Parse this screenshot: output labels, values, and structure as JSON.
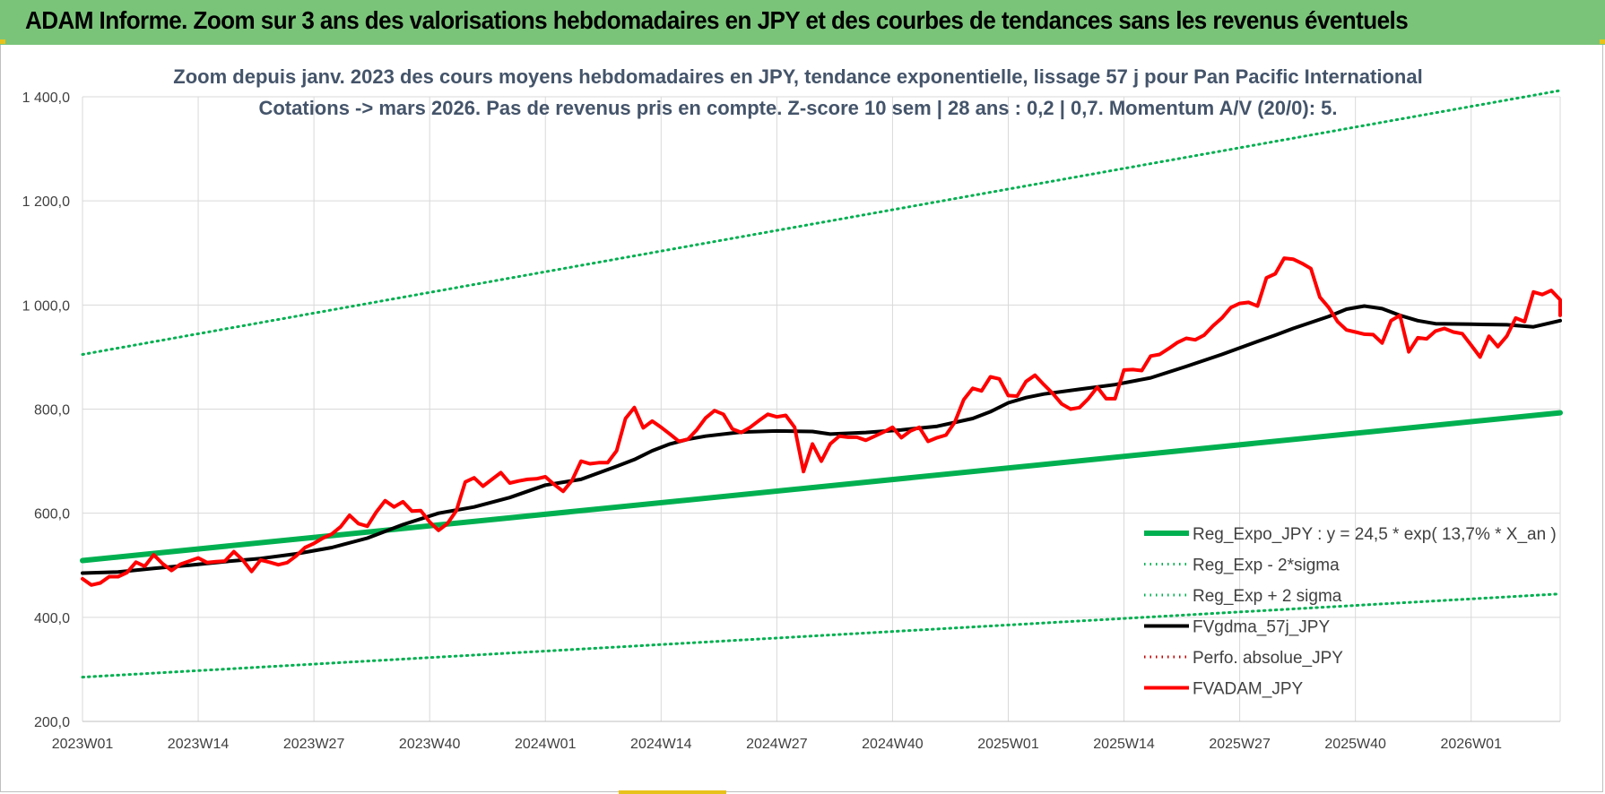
{
  "header": {
    "title": "ADAM Informe. Zoom sur 3 ans des valorisations hebdomadaires en JPY et des courbes de tendances sans les revenus éventuels"
  },
  "colors": {
    "banner": "#7ac47a",
    "regression": "#00b050",
    "price": "#ff0000",
    "smoothing": "#000000",
    "grid": "#d9d9d9"
  },
  "chart_data": {
    "type": "line",
    "subtitle_line1": "Zoom depuis janv. 2023 des cours moyens hebdomadaires en JPY, tendance exponentielle, lissage 57 j pour Pan Pacific International",
    "subtitle_line2": "Cotations -> mars 2026. Pas de revenus pris en compte. Z-score 10 sem | 28 ans : 0,2 | 0,7. Momentum A/V (20/0): 5.",
    "x_range_weeks": [
      0,
      166
    ],
    "x_ticks": [
      {
        "label": "2023W01",
        "week": 0
      },
      {
        "label": "2023W14",
        "week": 13
      },
      {
        "label": "2023W27",
        "week": 26
      },
      {
        "label": "2023W40",
        "week": 39
      },
      {
        "label": "2024W01",
        "week": 52
      },
      {
        "label": "2024W14",
        "week": 65
      },
      {
        "label": "2024W27",
        "week": 78
      },
      {
        "label": "2024W40",
        "week": 91
      },
      {
        "label": "2025W01",
        "week": 104
      },
      {
        "label": "2025W14",
        "week": 117
      },
      {
        "label": "2025W27",
        "week": 130
      },
      {
        "label": "2025W40",
        "week": 143
      },
      {
        "label": "2026W01",
        "week": 156
      }
    ],
    "y_ticks": [
      "200,0",
      "400,0",
      "600,0",
      "800,0",
      "1 000,0",
      "1 200,0",
      "1 400,0"
    ],
    "y_tick_values": [
      200,
      400,
      600,
      800,
      1000,
      1200,
      1400
    ],
    "ylim": [
      200,
      1400
    ],
    "grid": true,
    "legend_position": "bottom-right",
    "series": [
      {
        "name": "Reg_Expo_JPY : y = 24,5 * exp( 13,7% *  X_an )",
        "style": "solid-thick",
        "color": "#00b050",
        "points": [
          [
            0,
            509
          ],
          [
            166,
            793
          ]
        ]
      },
      {
        "name": "Reg_Exp - 2*sigma",
        "style": "dotted",
        "color": "#00b050",
        "points": [
          [
            0,
            285
          ],
          [
            166,
            445
          ]
        ]
      },
      {
        "name": "Reg_Exp + 2 sigma",
        "style": "dotted",
        "color": "#00b050",
        "points": [
          [
            0,
            905
          ],
          [
            166,
            1412
          ]
        ]
      },
      {
        "name": "FVgdma_57j_JPY",
        "style": "solid",
        "color": "#000000",
        "points": [
          [
            0,
            485
          ],
          [
            4,
            487
          ],
          [
            8,
            494
          ],
          [
            12,
            500
          ],
          [
            16,
            507
          ],
          [
            20,
            513
          ],
          [
            24,
            522
          ],
          [
            28,
            534
          ],
          [
            32,
            552
          ],
          [
            36,
            578
          ],
          [
            40,
            600
          ],
          [
            44,
            612
          ],
          [
            48,
            630
          ],
          [
            52,
            654
          ],
          [
            56,
            665
          ],
          [
            60,
            690
          ],
          [
            62,
            703
          ],
          [
            64,
            720
          ],
          [
            66,
            733
          ],
          [
            68,
            742
          ],
          [
            70,
            748
          ],
          [
            74,
            756
          ],
          [
            78,
            758
          ],
          [
            82,
            757
          ],
          [
            84,
            752
          ],
          [
            88,
            755
          ],
          [
            92,
            760
          ],
          [
            96,
            767
          ],
          [
            100,
            782
          ],
          [
            102,
            795
          ],
          [
            104,
            812
          ],
          [
            106,
            822
          ],
          [
            108,
            829
          ],
          [
            112,
            838
          ],
          [
            116,
            847
          ],
          [
            120,
            860
          ],
          [
            124,
            882
          ],
          [
            128,
            905
          ],
          [
            132,
            930
          ],
          [
            134,
            942
          ],
          [
            136,
            955
          ],
          [
            140,
            978
          ],
          [
            142,
            992
          ],
          [
            144,
            998
          ],
          [
            146,
            993
          ],
          [
            148,
            980
          ],
          [
            150,
            970
          ],
          [
            152,
            964
          ],
          [
            156,
            963
          ],
          [
            160,
            962
          ],
          [
            163,
            958
          ],
          [
            166,
            970
          ],
          [
            168,
            980
          ],
          [
            172,
            982
          ]
        ]
      },
      {
        "name": "Perfo. absolue_JPY",
        "style": "dotted",
        "color": "#c00000",
        "points": []
      },
      {
        "name": "FVADAM_JPY",
        "style": "solid-thick",
        "color": "#ff0000",
        "points": [
          [
            0,
            474
          ],
          [
            1,
            462
          ],
          [
            2,
            466
          ],
          [
            3,
            478
          ],
          [
            4,
            478
          ],
          [
            5,
            486
          ],
          [
            6,
            506
          ],
          [
            7,
            498
          ],
          [
            8,
            520
          ],
          [
            9,
            503
          ],
          [
            10,
            490
          ],
          [
            11,
            502
          ],
          [
            12,
            508
          ],
          [
            13,
            514
          ],
          [
            14,
            505
          ],
          [
            15,
            507
          ],
          [
            16,
            508
          ],
          [
            17,
            526
          ],
          [
            18,
            510
          ],
          [
            19,
            488
          ],
          [
            20,
            510
          ],
          [
            21,
            506
          ],
          [
            22,
            501
          ],
          [
            23,
            505
          ],
          [
            24,
            518
          ],
          [
            25,
            534
          ],
          [
            26,
            542
          ],
          [
            27,
            552
          ],
          [
            28,
            560
          ],
          [
            29,
            574
          ],
          [
            30,
            596
          ],
          [
            31,
            580
          ],
          [
            32,
            575
          ],
          [
            33,
            602
          ],
          [
            34,
            624
          ],
          [
            35,
            612
          ],
          [
            36,
            622
          ],
          [
            37,
            604
          ],
          [
            38,
            605
          ],
          [
            39,
            583
          ],
          [
            40,
            567
          ],
          [
            41,
            580
          ],
          [
            42,
            605
          ],
          [
            43,
            660
          ],
          [
            44,
            668
          ],
          [
            45,
            652
          ],
          [
            46,
            665
          ],
          [
            47,
            678
          ],
          [
            48,
            658
          ],
          [
            49,
            662
          ],
          [
            50,
            665
          ],
          [
            51,
            666
          ],
          [
            52,
            670
          ],
          [
            53,
            655
          ],
          [
            54,
            642
          ],
          [
            55,
            663
          ],
          [
            56,
            700
          ],
          [
            57,
            695
          ],
          [
            58,
            697
          ],
          [
            59,
            697
          ],
          [
            60,
            720
          ],
          [
            61,
            782
          ],
          [
            62,
            803
          ],
          [
            63,
            764
          ],
          [
            64,
            777
          ],
          [
            65,
            765
          ],
          [
            66,
            752
          ],
          [
            67,
            738
          ],
          [
            68,
            742
          ],
          [
            69,
            760
          ],
          [
            70,
            783
          ],
          [
            71,
            797
          ],
          [
            72,
            790
          ],
          [
            73,
            762
          ],
          [
            74,
            755
          ],
          [
            75,
            765
          ],
          [
            76,
            778
          ],
          [
            77,
            790
          ],
          [
            78,
            785
          ],
          [
            79,
            788
          ],
          [
            80,
            765
          ],
          [
            81,
            680
          ],
          [
            82,
            733
          ],
          [
            83,
            700
          ],
          [
            84,
            733
          ],
          [
            85,
            748
          ],
          [
            86,
            746
          ],
          [
            87,
            746
          ],
          [
            88,
            740
          ],
          [
            89,
            748
          ],
          [
            90,
            756
          ],
          [
            91,
            765
          ],
          [
            92,
            745
          ],
          [
            93,
            758
          ],
          [
            94,
            765
          ],
          [
            95,
            738
          ],
          [
            96,
            745
          ],
          [
            97,
            750
          ],
          [
            98,
            775
          ],
          [
            99,
            818
          ],
          [
            100,
            840
          ],
          [
            101,
            835
          ],
          [
            102,
            862
          ],
          [
            103,
            858
          ],
          [
            104,
            826
          ],
          [
            105,
            825
          ],
          [
            106,
            853
          ],
          [
            107,
            865
          ],
          [
            108,
            847
          ],
          [
            109,
            830
          ],
          [
            110,
            810
          ],
          [
            111,
            800
          ],
          [
            112,
            803
          ],
          [
            113,
            820
          ],
          [
            114,
            842
          ],
          [
            115,
            820
          ],
          [
            116,
            820
          ],
          [
            117,
            875
          ],
          [
            118,
            876
          ],
          [
            119,
            874
          ],
          [
            120,
            902
          ],
          [
            121,
            905
          ],
          [
            122,
            916
          ],
          [
            123,
            928
          ],
          [
            124,
            936
          ],
          [
            125,
            933
          ],
          [
            126,
            942
          ],
          [
            127,
            960
          ],
          [
            128,
            975
          ],
          [
            129,
            995
          ],
          [
            130,
            1003
          ],
          [
            131,
            1005
          ],
          [
            132,
            998
          ],
          [
            133,
            1052
          ],
          [
            134,
            1060
          ],
          [
            135,
            1090
          ],
          [
            136,
            1088
          ],
          [
            137,
            1080
          ],
          [
            138,
            1070
          ],
          [
            139,
            1015
          ],
          [
            140,
            995
          ],
          [
            141,
            968
          ],
          [
            142,
            952
          ],
          [
            143,
            948
          ],
          [
            144,
            944
          ],
          [
            145,
            943
          ],
          [
            146,
            927
          ],
          [
            147,
            970
          ],
          [
            148,
            980
          ],
          [
            149,
            910
          ],
          [
            150,
            937
          ],
          [
            151,
            935
          ],
          [
            152,
            950
          ],
          [
            153,
            955
          ],
          [
            154,
            948
          ],
          [
            155,
            945
          ],
          [
            156,
            923
          ],
          [
            157,
            900
          ],
          [
            158,
            940
          ],
          [
            159,
            920
          ],
          [
            160,
            940
          ],
          [
            161,
            975
          ],
          [
            162,
            968
          ],
          [
            163,
            1025
          ],
          [
            164,
            1020
          ],
          [
            165,
            1028
          ],
          [
            166,
            1010
          ],
          [
            167,
            980
          ]
        ]
      }
    ]
  }
}
